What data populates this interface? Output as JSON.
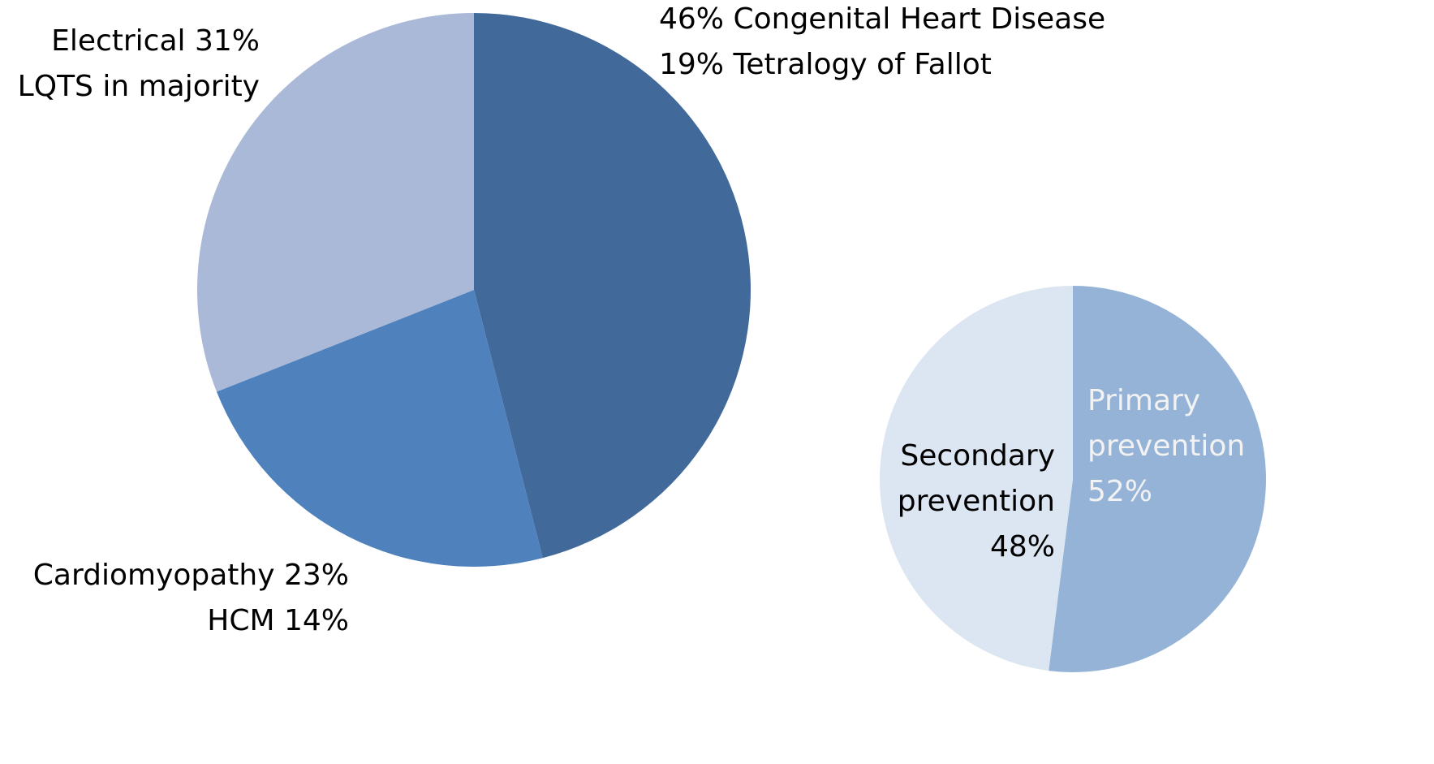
{
  "chart_data": [
    {
      "type": "pie",
      "values": [
        46,
        23,
        31
      ],
      "value_labels": [
        "46% Congenital Heart Disease",
        "Cardiomyopathy 23%",
        "Electrical 31%"
      ],
      "annotations": [
        "19% Tetralogy of Fallot",
        "HCM 14%",
        "LQTS in majority"
      ],
      "colors": [
        "#416a9b",
        "#4f81bd",
        "#a9b9d7"
      ]
    },
    {
      "type": "pie",
      "values": [
        52,
        48
      ],
      "value_labels": [
        [
          "Primary",
          "prevention",
          "52%"
        ],
        [
          "Secondary",
          "prevention",
          "48%"
        ]
      ],
      "colors": [
        "#95b3d7",
        "#dce6f2"
      ],
      "label_colors": [
        "#f2f2f2",
        "#000000"
      ]
    }
  ]
}
